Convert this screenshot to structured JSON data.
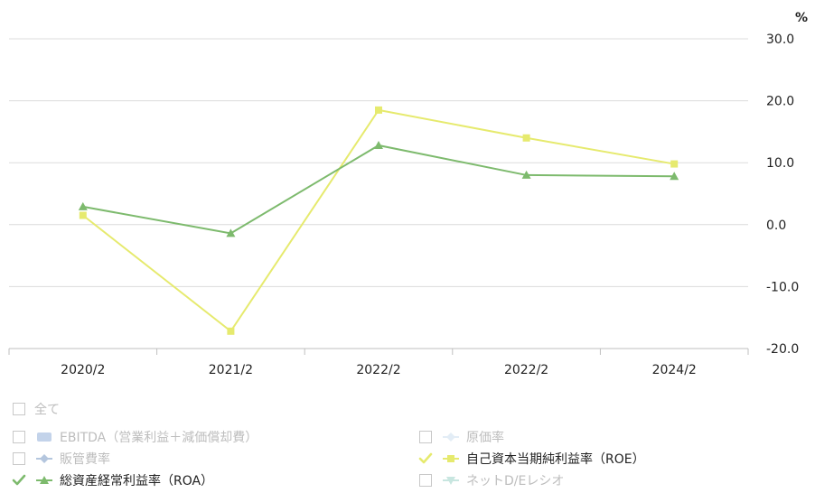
{
  "chart_data": {
    "type": "line",
    "unit": "%",
    "categories": [
      "2020/2",
      "2021/2",
      "2022/2",
      "2022/2",
      "2024/2"
    ],
    "ylim": [
      -20,
      30
    ],
    "yticks": [
      30,
      20,
      10,
      0,
      -10,
      -20
    ],
    "ytick_labels": [
      "30.0",
      "20.0",
      "10.0",
      "0.0",
      "-10.0",
      "-20.0"
    ],
    "grid": true,
    "series": [
      {
        "name": "自己資本当期純利益率（ROE）",
        "marker": "square",
        "color": "#e6ea6e",
        "values": [
          1.5,
          -17.2,
          18.5,
          14.0,
          9.8
        ]
      },
      {
        "name": "総資産経常利益率（ROA）",
        "marker": "triangle",
        "color": "#7dba6d",
        "values": [
          2.9,
          -1.4,
          12.8,
          8.0,
          7.8
        ]
      }
    ]
  },
  "legend": {
    "items": [
      {
        "label": "全て",
        "checked": false,
        "marker": "none",
        "color": "#cccccc"
      },
      {
        "label": "EBITDA（営業利益＋減価償却費）",
        "checked": false,
        "marker": "bar",
        "color": "#c3d3ea"
      },
      {
        "label": "原価率",
        "checked": false,
        "marker": "diamond",
        "color": "#e3edf6"
      },
      {
        "label": "販管費率",
        "checked": false,
        "marker": "diamond",
        "color": "#b4c6de"
      },
      {
        "label": "自己資本当期純利益率（ROE）",
        "checked": true,
        "marker": "square",
        "color": "#e6ea6e"
      },
      {
        "label": "総資産経常利益率（ROA）",
        "checked": true,
        "marker": "triangle",
        "color": "#7dba6d"
      },
      {
        "label": "ネットD/Eレシオ",
        "checked": false,
        "marker": "triangle-down",
        "color": "#c8e6e0"
      }
    ]
  }
}
